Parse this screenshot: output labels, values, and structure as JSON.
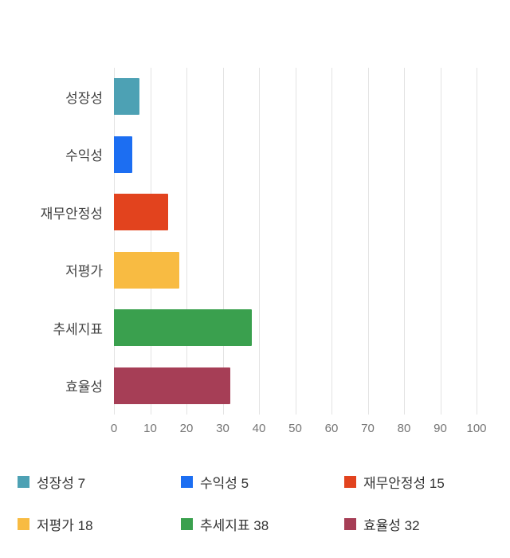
{
  "chart_data": {
    "type": "bar",
    "orientation": "horizontal",
    "title": "",
    "xlabel": "",
    "ylabel": "",
    "categories": [
      "성장성",
      "수익성",
      "재무안정성",
      "저평가",
      "추세지표",
      "효율성"
    ],
    "values": [
      7,
      5,
      15,
      18,
      38,
      32
    ],
    "colors": [
      "#4da1b4",
      "#1c6ef2",
      "#e2431e",
      "#f8bb42",
      "#3aa04e",
      "#a63e56"
    ],
    "xlim": [
      0,
      100
    ],
    "xticks": [
      0,
      10,
      20,
      30,
      40,
      50,
      60,
      70,
      80,
      90,
      100
    ],
    "grid": true,
    "legend_position": "bottom",
    "legend_items": [
      {
        "label": "성장성 7",
        "color": "#4da1b4"
      },
      {
        "label": "수익성 5",
        "color": "#1c6ef2"
      },
      {
        "label": "재무안정성 15",
        "color": "#e2431e"
      },
      {
        "label": "저평가 18",
        "color": "#f8bb42"
      },
      {
        "label": "추세지표 38",
        "color": "#3aa04e"
      },
      {
        "label": "효율성 32",
        "color": "#a63e56"
      }
    ]
  }
}
